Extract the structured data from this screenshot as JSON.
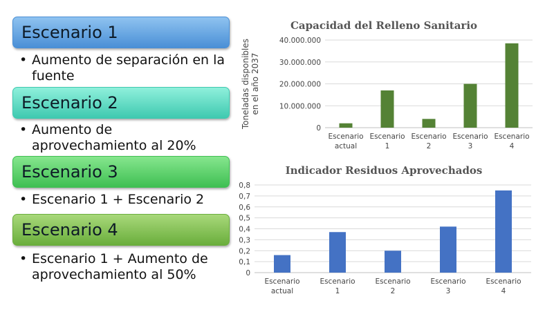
{
  "scenarios": [
    {
      "title": "Escenario 1",
      "desc": "Aumento de separación en la fuente",
      "color_top": "#8fc3f0",
      "color_bottom": "#4a8fd6"
    },
    {
      "title": "Escenario 2",
      "desc": "Aumento de aprovechamiento al 20%",
      "color_top": "#8ff0dc",
      "color_bottom": "#3fc9b0"
    },
    {
      "title": "Escenario 3",
      "desc": "Escenario 1 + Escenario 2",
      "color_top": "#86e68e",
      "color_bottom": "#3fbf52"
    },
    {
      "title": "Escenario 4",
      "desc": "Escenario 1 + Aumento de aprovechamiento al 50%",
      "color_top": "#a8d87a",
      "color_bottom": "#6aae3c"
    }
  ],
  "chart_data": [
    {
      "type": "bar",
      "title": "Capacidad del Relleno Sanitario",
      "ylabel": "Toneladas disponibles en el año 2037",
      "xlabel": "",
      "categories": [
        "Escenario actual",
        "Escenario 1",
        "Escenario 2",
        "Escenario 3",
        "Escenario 4"
      ],
      "values": [
        2000000,
        17000000,
        4000000,
        20000000,
        38500000
      ],
      "ylim": [
        0,
        40000000
      ],
      "yticks": [
        "0",
        "10.000.000",
        "20.000.000",
        "30.000.000",
        "40.000.000"
      ],
      "color": "#548235",
      "grid": true
    },
    {
      "type": "bar",
      "title": "Indicador Residuos Aprovechados",
      "ylabel": "",
      "xlabel": "",
      "categories": [
        "Escenario actual",
        "Escenario 1",
        "Escenario 2",
        "Escenario 3",
        "Escenario 4"
      ],
      "values": [
        0.16,
        0.37,
        0.2,
        0.42,
        0.75
      ],
      "ylim": [
        0,
        0.8
      ],
      "yticks": [
        "0",
        "0,1",
        "0,2",
        "0,3",
        "0,4",
        "0,5",
        "0,6",
        "0,7",
        "0,8"
      ],
      "color": "#4472c4",
      "grid": true
    }
  ]
}
